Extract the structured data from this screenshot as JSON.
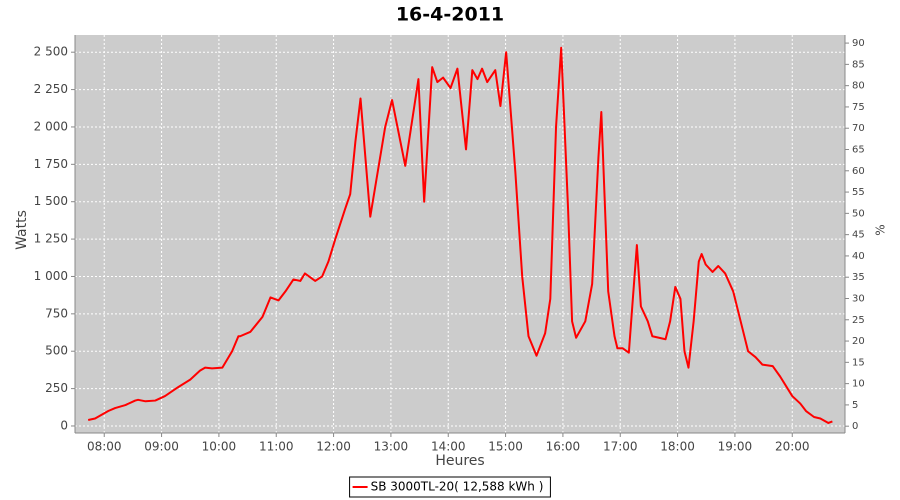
{
  "chart_data": {
    "type": "line",
    "title": "16-4-2011",
    "x_label": "Heures",
    "y_label": "Watts",
    "y2_label": "%",
    "x": [
      7.72,
      7.84,
      8.07,
      8.19,
      8.37,
      8.54,
      8.59,
      8.72,
      8.89,
      9.06,
      9.29,
      9.5,
      9.67,
      9.76,
      9.88,
      10.06,
      10.23,
      10.34,
      10.37,
      10.55,
      10.76,
      10.9,
      11.04,
      11.16,
      11.3,
      11.42,
      11.5,
      11.68,
      11.8,
      11.91,
      12.03,
      12.2,
      12.29,
      12.38,
      12.47,
      12.64,
      12.9,
      13.02,
      13.25,
      13.48,
      13.58,
      13.72,
      13.81,
      13.91,
      14.04,
      14.16,
      14.31,
      14.42,
      14.51,
      14.59,
      14.68,
      14.82,
      14.91,
      15.01,
      15.17,
      15.29,
      15.4,
      15.54,
      15.69,
      15.78,
      15.88,
      15.97,
      16.09,
      16.16,
      16.23,
      16.39,
      16.51,
      16.62,
      16.67,
      16.79,
      16.9,
      16.95,
      17.04,
      17.15,
      17.21,
      17.29,
      17.36,
      17.48,
      17.56,
      17.79,
      17.87,
      17.96,
      18.05,
      18.12,
      18.19,
      18.28,
      18.37,
      18.42,
      18.49,
      18.61,
      18.71,
      18.83,
      18.97,
      19.1,
      19.23,
      19.36,
      19.48,
      19.66,
      19.79,
      20.0,
      20.14,
      20.24,
      20.38,
      20.49,
      20.63,
      20.7
    ],
    "series": [
      {
        "name": "SB 3000TL-20( 12,588 kWh )",
        "color": "#ff0000",
        "values": [
          40,
          50,
          100,
          120,
          140,
          170,
          175,
          165,
          170,
          200,
          260,
          310,
          370,
          390,
          385,
          390,
          500,
          600,
          600,
          630,
          730,
          860,
          840,
          900,
          980,
          970,
          1020,
          970,
          1000,
          1100,
          1250,
          1450,
          1550,
          1900,
          2190,
          1400,
          2000,
          2180,
          1740,
          2320,
          1500,
          2400,
          2300,
          2330,
          2260,
          2390,
          1850,
          2380,
          2320,
          2390,
          2300,
          2380,
          2140,
          2500,
          1700,
          1000,
          600,
          470,
          620,
          850,
          2000,
          2530,
          1450,
          700,
          590,
          700,
          950,
          1800,
          2100,
          900,
          600,
          520,
          520,
          490,
          800,
          1210,
          800,
          700,
          600,
          580,
          700,
          930,
          850,
          500,
          390,
          700,
          1100,
          1150,
          1080,
          1030,
          1070,
          1020,
          900,
          700,
          500,
          460,
          410,
          400,
          330,
          200,
          150,
          100,
          60,
          50,
          20,
          30
        ]
      }
    ],
    "xlim": [
      7.49,
      20.92
    ],
    "xticks": [
      {
        "value": 8,
        "label": "08:00"
      },
      {
        "value": 9,
        "label": "09:00"
      },
      {
        "value": 10,
        "label": "10:00"
      },
      {
        "value": 11,
        "label": "11:00"
      },
      {
        "value": 12,
        "label": "12:00"
      },
      {
        "value": 13,
        "label": "13:00"
      },
      {
        "value": 14,
        "label": "14:00"
      },
      {
        "value": 15,
        "label": "15:00"
      },
      {
        "value": 16,
        "label": "16:00"
      },
      {
        "value": 17,
        "label": "17:00"
      },
      {
        "value": 18,
        "label": "18:00"
      },
      {
        "value": 19,
        "label": "19:00"
      },
      {
        "value": 20,
        "label": "20:00"
      }
    ],
    "ylim": [
      -47,
      2615
    ],
    "yticks": [
      0,
      250,
      500,
      750,
      {
        "value": 1000,
        "label": "1 000"
      },
      {
        "value": 1250,
        "label": "1 250"
      },
      {
        "value": 1500,
        "label": "1 500"
      },
      {
        "value": 1750,
        "label": "1 750"
      },
      {
        "value": 2000,
        "label": "2 000"
      },
      {
        "value": 2250,
        "label": "2 250"
      },
      {
        "value": 2500,
        "label": "2 500"
      }
    ],
    "y2lim": [
      -1.6,
      91.9
    ],
    "y2ticks": [
      0,
      5,
      10,
      15,
      20,
      25,
      30,
      35,
      40,
      45,
      50,
      55,
      60,
      65,
      70,
      75,
      80,
      85,
      90
    ],
    "grid": true
  }
}
